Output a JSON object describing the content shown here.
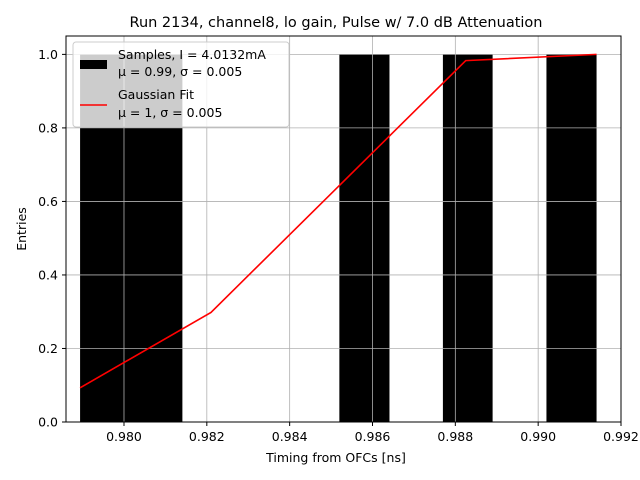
{
  "chart_data": {
    "type": "bar",
    "title": "Run 2134, channel8, lo gain, Pulse w/ 7.0 dB Attenuation",
    "xlabel": "Timing from OFCs [ns]",
    "ylabel": "Entries",
    "xlim": [
      0.9786,
      0.992
    ],
    "ylim": [
      0,
      1.05
    ],
    "grid": true,
    "legend_position": "top-left",
    "xticks": [
      "0.980",
      "0.982",
      "0.984",
      "0.986",
      "0.988",
      "0.990",
      "0.992"
    ],
    "xtick_values": [
      0.98,
      0.982,
      0.984,
      0.986,
      0.988,
      0.99,
      0.992
    ],
    "yticks": [
      "0.0",
      "0.2",
      "0.4",
      "0.6",
      "0.8",
      "1.0"
    ],
    "ytick_values": [
      0.0,
      0.2,
      0.4,
      0.6,
      0.8,
      1.0
    ],
    "series": [
      {
        "name": "Samples, I = 4.0132mA",
        "name_line2": "μ = 0.99, σ = 0.005",
        "kind": "histogram",
        "color": "#000000",
        "bins": [
          {
            "x0": 0.97894,
            "x1": 0.98141,
            "value": 1.0
          },
          {
            "x0": 0.9852,
            "x1": 0.98641,
            "value": 1.0
          },
          {
            "x0": 0.9877,
            "x1": 0.9889,
            "value": 1.0
          },
          {
            "x0": 0.9902,
            "x1": 0.99141,
            "value": 1.0
          }
        ]
      },
      {
        "name": "Gaussian Fit",
        "name_line2": "μ = 1, σ = 0.005",
        "kind": "line",
        "color": "#ff0000",
        "points": [
          {
            "x": 0.97894,
            "y": 0.093
          },
          {
            "x": 0.9821,
            "y": 0.298
          },
          {
            "x": 0.98825,
            "y": 0.983
          },
          {
            "x": 0.99141,
            "y": 1.0
          }
        ]
      }
    ]
  }
}
